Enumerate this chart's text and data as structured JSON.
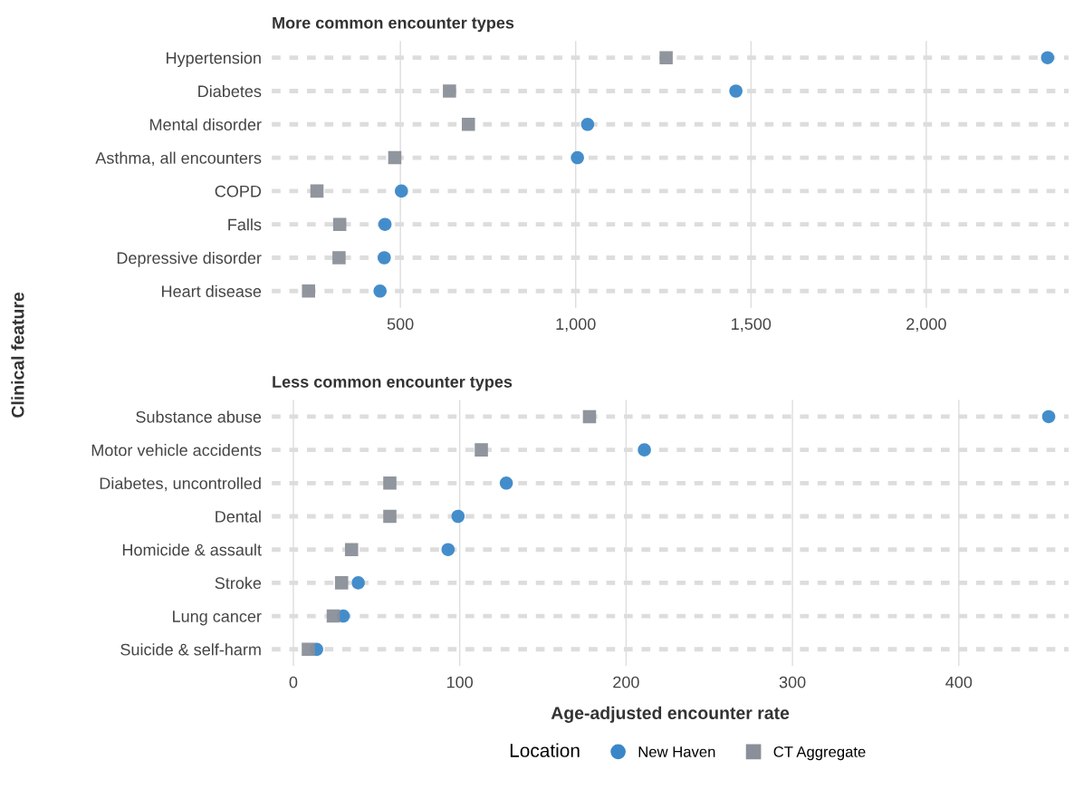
{
  "chart_data": [
    {
      "type": "scatter",
      "title": "More common encounter types",
      "ylabel": "Clinical feature",
      "categories": [
        "Hypertension",
        "Diabetes",
        "Mental disorder",
        "Asthma, all encounters",
        "COPD",
        "Falls",
        "Depressive disorder",
        "Heart disease"
      ],
      "orientation": "horizontal",
      "series": [
        {
          "color": "#3a87c8",
          "marker": "circle",
          "values": [
            2346,
            1457,
            1034,
            1005,
            503,
            456,
            454,
            442
          ]
        },
        {
          "color": "#8a8f99",
          "marker": "square",
          "values": [
            1258,
            640,
            694,
            484,
            262,
            327,
            325,
            238
          ]
        }
      ],
      "xlim": [
        133,
        2406
      ],
      "xticks": [
        {
          "value": 500,
          "label": "500"
        },
        {
          "value": 1000,
          "label": "1,000"
        },
        {
          "value": 1500,
          "label": "1,500"
        },
        {
          "value": 2000,
          "label": "2,000"
        }
      ],
      "grid": true
    },
    {
      "type": "scatter",
      "title": "Less common encounter types",
      "xlabel": "Age-adjusted encounter rate",
      "legend_title": "Location",
      "categories": [
        "Substance abuse",
        "Motor vehicle accidents",
        "Diabetes, uncontrolled",
        "Dental",
        "Homicide & assault",
        "Stroke",
        "Lung cancer",
        "Suicide & self-harm"
      ],
      "orientation": "horizontal",
      "series": [
        {
          "name": "New Haven",
          "color": "#3a87c8",
          "marker": "circle",
          "values": [
            454,
            211,
            128,
            99,
            93,
            39,
            30,
            14
          ]
        },
        {
          "name": "CT Aggregate",
          "color": "#8a8f99",
          "marker": "square",
          "values": [
            178,
            113,
            58,
            58,
            35,
            29,
            24,
            9
          ]
        }
      ],
      "xlim": [
        -13,
        466
      ],
      "xticks": [
        0,
        100,
        200,
        300,
        400
      ],
      "grid": true,
      "legend": "bottom"
    }
  ]
}
